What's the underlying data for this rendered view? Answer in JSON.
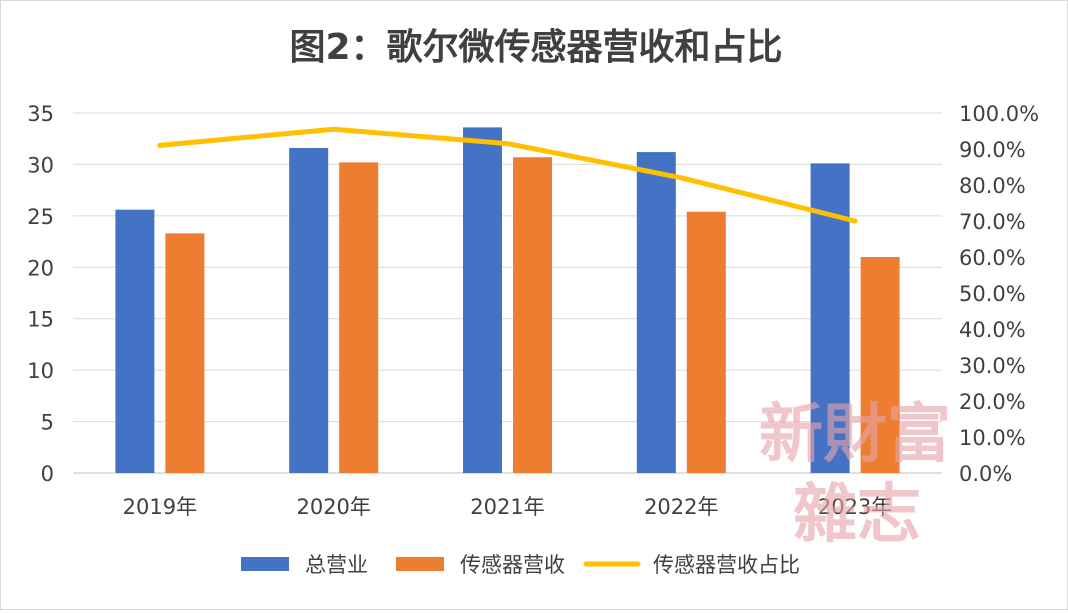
{
  "chart_data": {
    "type": "bar",
    "title": "图2：歌尔微传感器营收和占比",
    "categories": [
      "2019年",
      "2020年",
      "2021年",
      "2022年",
      "2023年"
    ],
    "series": [
      {
        "name": "总营业",
        "type": "bar",
        "axis": "left",
        "color": "#4472C4",
        "values": [
          25.6,
          31.6,
          33.6,
          31.2,
          30.1
        ]
      },
      {
        "name": "传感器营收",
        "type": "bar",
        "axis": "left",
        "color": "#ED7D31",
        "values": [
          23.3,
          30.2,
          30.7,
          25.4,
          21.0
        ]
      },
      {
        "name": "传感器营收占比",
        "type": "line",
        "axis": "right",
        "color": "#FFC000",
        "values": [
          0.91,
          0.955,
          0.915,
          0.82,
          0.7
        ]
      }
    ],
    "y_left": {
      "min": 0,
      "max": 35,
      "ticks": [
        "0",
        "5",
        "10",
        "15",
        "20",
        "25",
        "30",
        "35"
      ]
    },
    "y_right": {
      "min": 0,
      "max": 1,
      "ticks": [
        "0.0%",
        "10.0%",
        "20.0%",
        "30.0%",
        "40.0%",
        "50.0%",
        "60.0%",
        "70.0%",
        "80.0%",
        "90.0%",
        "100.0%"
      ]
    },
    "grid": true,
    "legend_position": "bottom"
  },
  "watermark": {
    "line1": "新財富",
    "line2": "雜志"
  }
}
